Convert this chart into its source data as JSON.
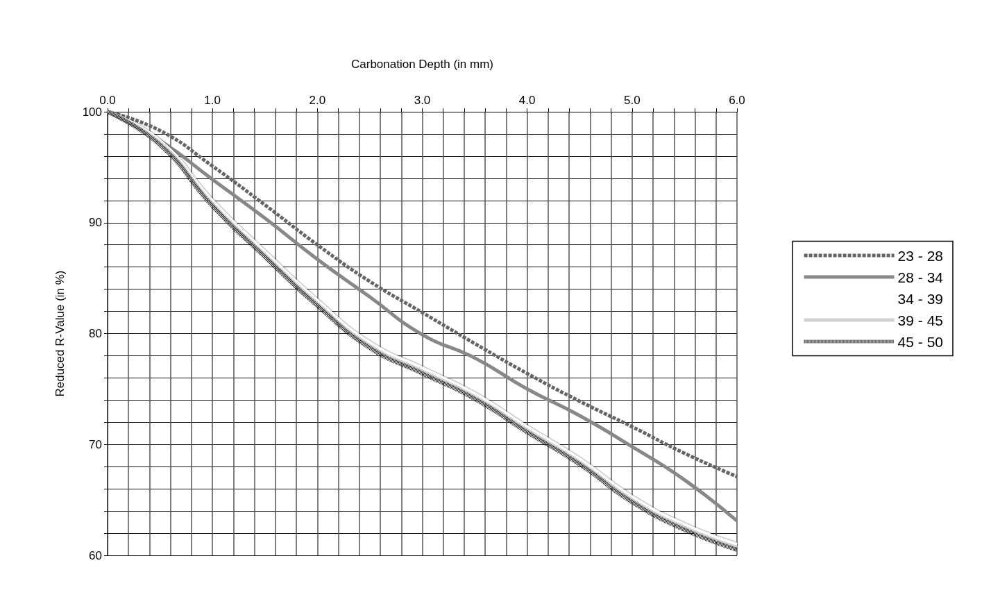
{
  "chart_data": {
    "type": "line",
    "xlabel": "Carbonation Depth (in mm)",
    "ylabel": "Reduced R-Value (in %)",
    "x": [
      0,
      0.5,
      1,
      1.5,
      2,
      2.5,
      3,
      3.5,
      4,
      4.5,
      5,
      5.5,
      6
    ],
    "xlim": [
      0,
      6
    ],
    "ylim": [
      60,
      100
    ],
    "xticks": [
      {
        "value": 0,
        "label": "0.0"
      },
      {
        "value": 0.2,
        "label": null
      },
      {
        "value": 0.4,
        "label": null
      },
      {
        "value": 0.6,
        "label": null
      },
      {
        "value": 0.8,
        "label": null
      },
      {
        "value": 1,
        "label": "1.0"
      },
      {
        "value": 1.2,
        "label": null
      },
      {
        "value": 1.4,
        "label": null
      },
      {
        "value": 1.6,
        "label": null
      },
      {
        "value": 1.8,
        "label": null
      },
      {
        "value": 2,
        "label": "2.0"
      },
      {
        "value": 2.2,
        "label": null
      },
      {
        "value": 2.4,
        "label": null
      },
      {
        "value": 2.6,
        "label": null
      },
      {
        "value": 2.8,
        "label": null
      },
      {
        "value": 3,
        "label": "3.0"
      },
      {
        "value": 3.2,
        "label": null
      },
      {
        "value": 3.4,
        "label": null
      },
      {
        "value": 3.6,
        "label": null
      },
      {
        "value": 3.8,
        "label": null
      },
      {
        "value": 4,
        "label": "4.0"
      },
      {
        "value": 4.2,
        "label": null
      },
      {
        "value": 4.4,
        "label": null
      },
      {
        "value": 4.6,
        "label": null
      },
      {
        "value": 4.8,
        "label": null
      },
      {
        "value": 5,
        "label": "5.0"
      },
      {
        "value": 5.2,
        "label": null
      },
      {
        "value": 5.4,
        "label": null
      },
      {
        "value": 5.6,
        "label": null
      },
      {
        "value": 5.8,
        "label": null
      },
      {
        "value": 6,
        "label": "6.0"
      }
    ],
    "yticks": [
      60,
      {
        "value": 62,
        "label": null
      },
      {
        "value": 64,
        "label": null
      },
      {
        "value": 66,
        "label": null
      },
      {
        "value": 68,
        "label": null
      },
      70,
      {
        "value": 72,
        "label": null
      },
      {
        "value": 74,
        "label": null
      },
      {
        "value": 76,
        "label": null
      },
      {
        "value": 78,
        "label": null
      },
      80,
      {
        "value": 82,
        "label": null
      },
      {
        "value": 84,
        "label": null
      },
      {
        "value": 86,
        "label": null
      },
      {
        "value": 88,
        "label": null
      },
      90,
      {
        "value": 92,
        "label": null
      },
      {
        "value": 94,
        "label": null
      },
      {
        "value": 96,
        "label": null
      },
      {
        "value": 98,
        "label": null
      },
      100
    ],
    "grid": true,
    "legend": "right",
    "marker": "none",
    "series": [
      {
        "name": "23 - 28",
        "color": "#666666",
        "line_style": "dashed",
        "values": [
          100,
          98.3,
          95.1,
          91.6,
          88.0,
          84.7,
          81.9,
          79.1,
          76.4,
          73.9,
          71.6,
          69.2,
          67.1
        ]
      },
      {
        "name": "28 - 34",
        "color": "#888888",
        "line_style": "solid",
        "values": [
          100,
          97.4,
          93.9,
          90.4,
          86.7,
          83.3,
          79.9,
          77.8,
          75.0,
          72.6,
          69.8,
          66.8,
          63.1
        ]
      },
      {
        "name": "34 - 39",
        "color": "#ffffff",
        "line_style": "solid",
        "values": [
          100,
          97.4,
          92.0,
          87.4,
          83.0,
          79.2,
          76.9,
          74.6,
          71.6,
          68.7,
          65.3,
          62.8,
          61.0
        ]
      },
      {
        "name": "39 - 45",
        "color": "#d0d0d0",
        "line_style": "solid",
        "values": [
          100,
          97.2,
          91.7,
          87.1,
          82.7,
          78.9,
          76.6,
          74.3,
          71.3,
          68.4,
          65.0,
          62.5,
          60.7
        ]
      },
      {
        "name": "45 - 50",
        "color": "#111111",
        "line_style": "dotted",
        "values": [
          100,
          97.0,
          91.5,
          86.9,
          82.5,
          78.7,
          76.4,
          74.1,
          71.1,
          68.2,
          64.8,
          62.3,
          60.5
        ]
      }
    ]
  }
}
